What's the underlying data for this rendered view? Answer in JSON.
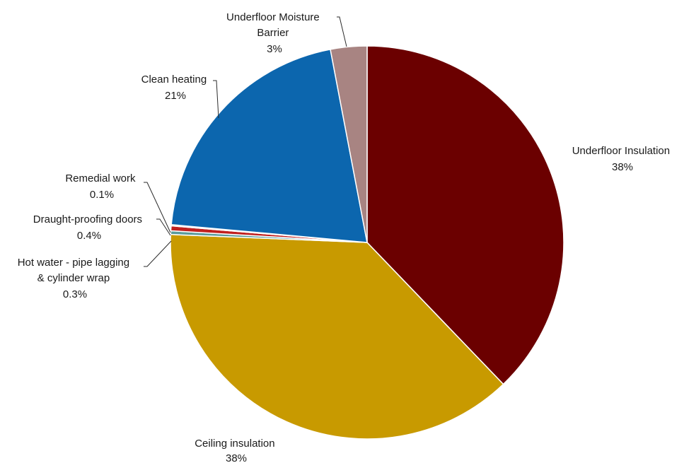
{
  "chart_data": {
    "type": "pie",
    "title": "",
    "slices": [
      {
        "name": "Underfloor Insulation",
        "label_lines": [
          "Underfloor Insulation"
        ],
        "value_text": "38%",
        "value": 37.9,
        "color": "#6B0000"
      },
      {
        "name": "Ceiling insulation",
        "label_lines": [
          "Ceiling insulation"
        ],
        "value_text": "38%",
        "value": 37.9,
        "color": "#C89A00"
      },
      {
        "name": "Hot water - pipe lagging & cylinder wrap",
        "label_lines": [
          "Hot water - pipe lagging",
          "& cylinder wrap"
        ],
        "value_text": "0.3%",
        "value": 0.3,
        "color": "#5B9B9B"
      },
      {
        "name": "Draught-proofing doors",
        "label_lines": [
          "Draught-proofing doors"
        ],
        "value_text": "0.4%",
        "value": 0.4,
        "color": "#C0201F"
      },
      {
        "name": "Remedial work",
        "label_lines": [
          "Remedial work"
        ],
        "value_text": "0.1%",
        "value": 0.1,
        "color": "#E7B97A"
      },
      {
        "name": "Clean heating",
        "label_lines": [
          "Clean heating"
        ],
        "value_text": "21%",
        "value": 20.6,
        "color": "#0C66AE"
      },
      {
        "name": "Underfloor Moisture Barrier",
        "label_lines": [
          "Underfloor Moisture",
          "Barrier"
        ],
        "value_text": "3%",
        "value": 3.0,
        "color": "#A88482"
      }
    ],
    "start": "top",
    "direction": "clockwise"
  }
}
